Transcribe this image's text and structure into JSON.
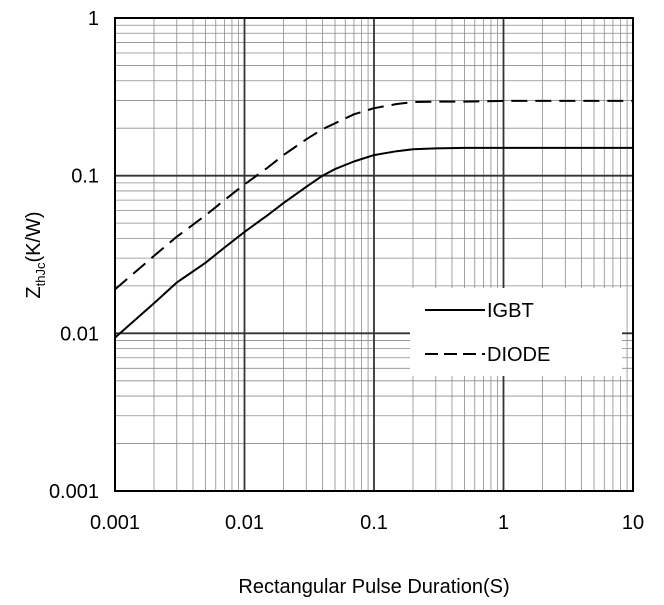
{
  "chart_data": {
    "type": "line",
    "xlabel": "Rectangular Pulse Duration(S)",
    "ylabel": {
      "main": "Z",
      "subscript": "thJc",
      "unit": "(K/W)"
    },
    "x_scale": "log",
    "y_scale": "log",
    "xlim": [
      0.001,
      10
    ],
    "ylim": [
      0.001,
      1
    ],
    "x_ticks": [
      "0.001",
      "0.01",
      "0.1",
      "1",
      "10"
    ],
    "y_ticks": [
      "0.001",
      "0.01",
      "0.1",
      "1"
    ],
    "grid": true,
    "legend_position": "lower-right",
    "series": [
      {
        "name": "IGBT",
        "style": "solid",
        "color": "#000000",
        "x": [
          0.001,
          0.002,
          0.003,
          0.005,
          0.007,
          0.01,
          0.015,
          0.02,
          0.03,
          0.04,
          0.05,
          0.07,
          0.1,
          0.15,
          0.2,
          0.3,
          0.5,
          1,
          2,
          5,
          10
        ],
        "y": [
          0.0094,
          0.0155,
          0.021,
          0.028,
          0.035,
          0.044,
          0.056,
          0.067,
          0.085,
          0.1,
          0.11,
          0.123,
          0.135,
          0.143,
          0.147,
          0.149,
          0.15,
          0.15,
          0.15,
          0.15,
          0.15
        ]
      },
      {
        "name": "DIODE",
        "style": "dashed",
        "color": "#000000",
        "x": [
          0.001,
          0.002,
          0.003,
          0.005,
          0.007,
          0.01,
          0.015,
          0.02,
          0.03,
          0.04,
          0.05,
          0.07,
          0.1,
          0.15,
          0.2,
          0.3,
          0.5,
          1,
          2,
          5,
          10
        ],
        "y": [
          0.019,
          0.031,
          0.041,
          0.056,
          0.07,
          0.088,
          0.112,
          0.135,
          0.17,
          0.197,
          0.215,
          0.245,
          0.268,
          0.285,
          0.293,
          0.295,
          0.295,
          0.298,
          0.298,
          0.298,
          0.298
        ]
      }
    ]
  }
}
